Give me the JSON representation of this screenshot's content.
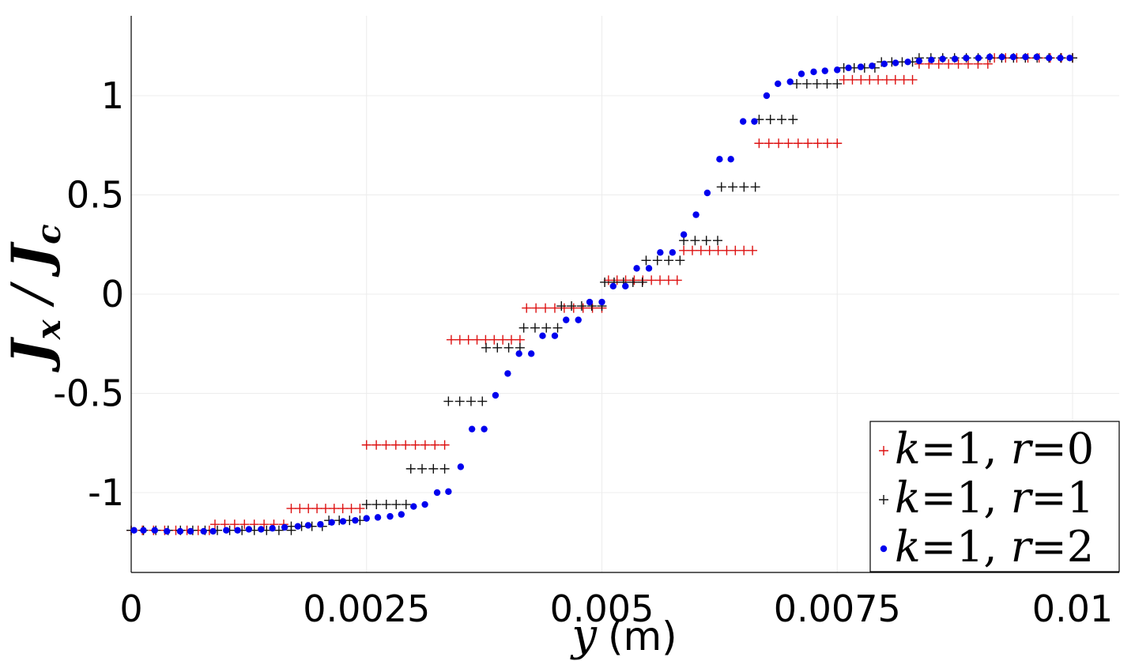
{
  "chart_data": {
    "type": "scatter",
    "title": "",
    "xlabel": {
      "var": "y",
      "unit": "(m)"
    },
    "ylabel": "J_x / J_c",
    "xlim": [
      0,
      0.0105
    ],
    "ylim": [
      -1.4,
      1.4
    ],
    "grid": true,
    "legend_position": "bottom-right",
    "x_ticks": [
      {
        "value": 0,
        "label": "0"
      },
      {
        "value": 0.0025,
        "label": "0.0025"
      },
      {
        "value": 0.005,
        "label": "0.005"
      },
      {
        "value": 0.0075,
        "label": "0.0075"
      },
      {
        "value": 0.01,
        "label": "0.01"
      }
    ],
    "y_ticks": [
      {
        "value": 1,
        "label": "1"
      },
      {
        "value": 0.5,
        "label": "0.5"
      },
      {
        "value": 0,
        "label": "0"
      },
      {
        "value": -0.5,
        "label": "-0.5"
      },
      {
        "value": -1,
        "label": "-1"
      }
    ],
    "series": [
      {
        "name": "k=1, r=0",
        "legend": {
          "k": "k",
          "kval": "1",
          "r": "r",
          "rval": "0"
        },
        "marker": "plus",
        "color": "#dd1111",
        "steps": [
          {
            "y": -1.19,
            "x0": 0.0,
            "x1": 0.00083,
            "n": 8
          },
          {
            "y": -1.16,
            "x0": 0.00089,
            "x1": 0.00162,
            "n": 8
          },
          {
            "y": -1.08,
            "x0": 0.0017,
            "x1": 0.00243,
            "n": 9
          },
          {
            "y": -0.76,
            "x0": 0.0025,
            "x1": 0.00333,
            "n": 9
          },
          {
            "y": -0.23,
            "x0": 0.0034,
            "x1": 0.00413,
            "n": 9
          },
          {
            "y": -0.07,
            "x0": 0.0042,
            "x1": 0.005,
            "n": 9
          },
          {
            "y": 0.07,
            "x0": 0.00507,
            "x1": 0.0058,
            "n": 9
          },
          {
            "y": 0.22,
            "x0": 0.00587,
            "x1": 0.0066,
            "n": 9
          },
          {
            "y": 0.76,
            "x0": 0.00667,
            "x1": 0.0075,
            "n": 9
          },
          {
            "y": 1.08,
            "x0": 0.00757,
            "x1": 0.0083,
            "n": 9
          },
          {
            "y": 1.16,
            "x0": 0.00837,
            "x1": 0.0091,
            "n": 8
          },
          {
            "y": 1.19,
            "x0": 0.00917,
            "x1": 0.01,
            "n": 8
          }
        ]
      },
      {
        "name": "k=1, r=1",
        "legend": {
          "k": "k",
          "kval": "1",
          "r": "r",
          "rval": "1"
        },
        "marker": "plus",
        "color": "#111111",
        "steps": [
          {
            "y": -1.19,
            "x0": 0.0,
            "x1": 0.0017,
            "n": 14
          },
          {
            "y": -1.17,
            "x0": 0.0017,
            "x1": 0.00203,
            "n": 4
          },
          {
            "y": -1.14,
            "x0": 0.0021,
            "x1": 0.00243,
            "n": 4
          },
          {
            "y": -1.06,
            "x0": 0.0025,
            "x1": 0.00292,
            "n": 5
          },
          {
            "y": -0.88,
            "x0": 0.00297,
            "x1": 0.00333,
            "n": 4
          },
          {
            "y": -0.54,
            "x0": 0.00337,
            "x1": 0.00373,
            "n": 4
          },
          {
            "y": -0.27,
            "x0": 0.00377,
            "x1": 0.00413,
            "n": 4
          },
          {
            "y": -0.17,
            "x0": 0.00417,
            "x1": 0.00453,
            "n": 4
          },
          {
            "y": -0.06,
            "x0": 0.00457,
            "x1": 0.005,
            "n": 5
          },
          {
            "y": 0.06,
            "x0": 0.00503,
            "x1": 0.00543,
            "n": 5
          },
          {
            "y": 0.17,
            "x0": 0.00547,
            "x1": 0.00583,
            "n": 4
          },
          {
            "y": 0.27,
            "x0": 0.00587,
            "x1": 0.00623,
            "n": 4
          },
          {
            "y": 0.54,
            "x0": 0.00627,
            "x1": 0.00663,
            "n": 4
          },
          {
            "y": 0.88,
            "x0": 0.00667,
            "x1": 0.00703,
            "n": 4
          },
          {
            "y": 1.06,
            "x0": 0.00707,
            "x1": 0.0075,
            "n": 5
          },
          {
            "y": 1.14,
            "x0": 0.00757,
            "x1": 0.0079,
            "n": 4
          },
          {
            "y": 1.17,
            "x0": 0.00797,
            "x1": 0.0083,
            "n": 4
          },
          {
            "y": 1.19,
            "x0": 0.00837,
            "x1": 0.01,
            "n": 14
          }
        ]
      },
      {
        "name": "k=1, r=2",
        "legend": {
          "k": "k",
          "kval": "1",
          "r": "r",
          "rval": "2"
        },
        "marker": "dot",
        "color": "#0000ee",
        "points": [
          [
            3e-05,
            -1.19
          ],
          [
            0.00013,
            -1.19
          ],
          [
            0.00025,
            -1.19
          ],
          [
            0.00038,
            -1.195
          ],
          [
            0.00052,
            -1.195
          ],
          [
            0.00063,
            -1.195
          ],
          [
            0.00077,
            -1.195
          ],
          [
            0.00087,
            -1.195
          ],
          [
            0.00101,
            -1.19
          ],
          [
            0.00113,
            -1.19
          ],
          [
            0.00125,
            -1.185
          ],
          [
            0.00138,
            -1.185
          ],
          [
            0.0015,
            -1.18
          ],
          [
            0.00163,
            -1.175
          ],
          [
            0.00177,
            -1.17
          ],
          [
            0.00188,
            -1.165
          ],
          [
            0.00201,
            -1.16
          ],
          [
            0.00213,
            -1.15
          ],
          [
            0.00225,
            -1.145
          ],
          [
            0.00238,
            -1.14
          ],
          [
            0.0025,
            -1.13
          ],
          [
            0.00262,
            -1.125
          ],
          [
            0.00275,
            -1.12
          ],
          [
            0.00287,
            -1.11
          ],
          [
            0.003,
            -1.07
          ],
          [
            0.00312,
            -1.06
          ],
          [
            0.00325,
            -1.0
          ],
          [
            0.00337,
            -0.995
          ],
          [
            0.0035,
            -0.87
          ],
          [
            0.00362,
            -0.68
          ],
          [
            0.00375,
            -0.68
          ],
          [
            0.00387,
            -0.51
          ],
          [
            0.004,
            -0.4
          ],
          [
            0.00412,
            -0.3
          ],
          [
            0.00425,
            -0.3
          ],
          [
            0.00437,
            -0.21
          ],
          [
            0.0045,
            -0.21
          ],
          [
            0.00462,
            -0.13
          ],
          [
            0.00475,
            -0.13
          ],
          [
            0.00487,
            -0.04
          ],
          [
            0.005,
            -0.04
          ],
          [
            0.00512,
            0.04
          ],
          [
            0.00525,
            0.04
          ],
          [
            0.00537,
            0.13
          ],
          [
            0.0055,
            0.13
          ],
          [
            0.00562,
            0.21
          ],
          [
            0.00575,
            0.21
          ],
          [
            0.00587,
            0.3
          ],
          [
            0.006,
            0.4
          ],
          [
            0.00612,
            0.51
          ],
          [
            0.00625,
            0.68
          ],
          [
            0.00637,
            0.68
          ],
          [
            0.0065,
            0.87
          ],
          [
            0.00662,
            0.87
          ],
          [
            0.00675,
            1.0
          ],
          [
            0.00687,
            1.06
          ],
          [
            0.007,
            1.07
          ],
          [
            0.00712,
            1.11
          ],
          [
            0.00725,
            1.12
          ],
          [
            0.00737,
            1.125
          ],
          [
            0.0075,
            1.13
          ],
          [
            0.00762,
            1.14
          ],
          [
            0.00775,
            1.145
          ],
          [
            0.00787,
            1.15
          ],
          [
            0.008,
            1.16
          ],
          [
            0.00812,
            1.165
          ],
          [
            0.00825,
            1.17
          ],
          [
            0.00837,
            1.175
          ],
          [
            0.0085,
            1.18
          ],
          [
            0.00862,
            1.185
          ],
          [
            0.00875,
            1.185
          ],
          [
            0.00887,
            1.19
          ],
          [
            0.009,
            1.19
          ],
          [
            0.00912,
            1.195
          ],
          [
            0.00925,
            1.195
          ],
          [
            0.00937,
            1.195
          ],
          [
            0.0095,
            1.195
          ],
          [
            0.00962,
            1.195
          ],
          [
            0.00975,
            1.19
          ],
          [
            0.00987,
            1.19
          ],
          [
            0.00997,
            1.19
          ]
        ]
      }
    ]
  }
}
